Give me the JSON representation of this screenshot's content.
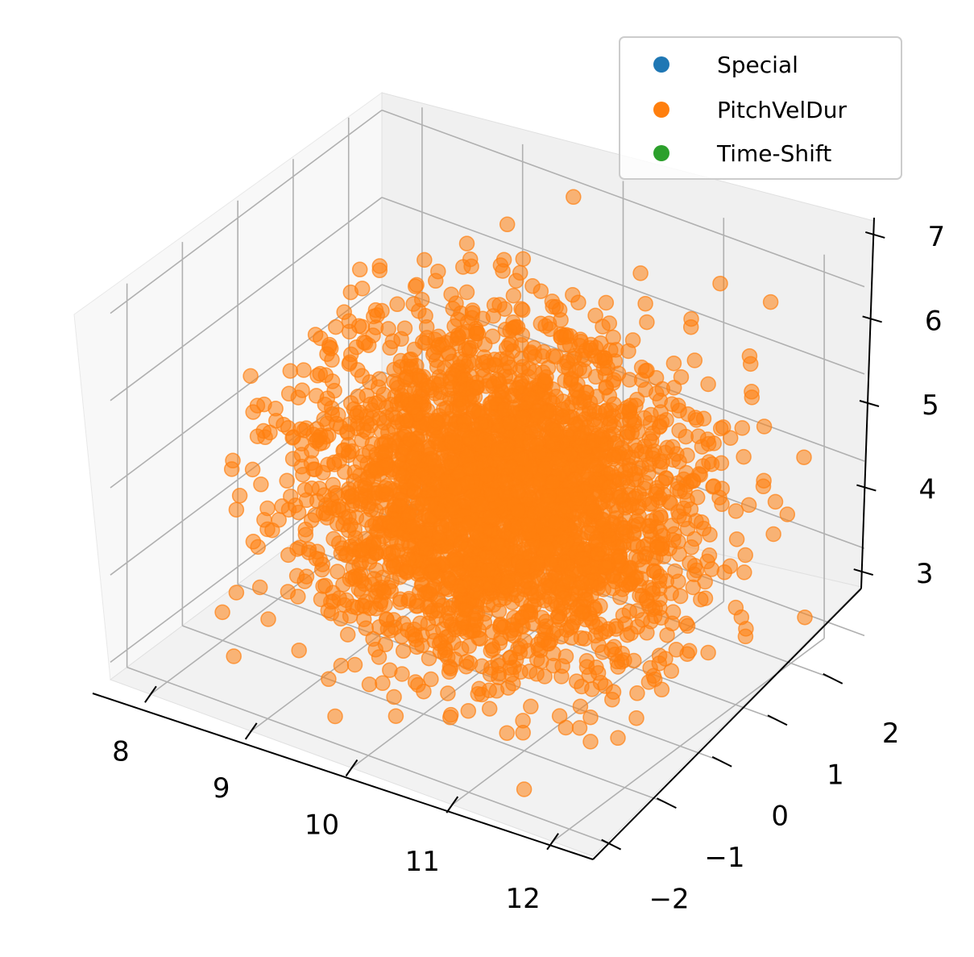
{
  "chart_data": {
    "type": "scatter",
    "projection": "3d",
    "title": "",
    "xlabel": "",
    "ylabel": "",
    "zlabel": "",
    "xlim": [
      7.6,
      12.4
    ],
    "ylim": [
      -2.3,
      2.6
    ],
    "zlim": [
      2.8,
      7.2
    ],
    "x_ticks": [
      "8",
      "9",
      "10",
      "11",
      "12"
    ],
    "y_ticks": [
      "−2",
      "−1",
      "0",
      "1",
      "2"
    ],
    "z_ticks": [
      "3",
      "4",
      "5",
      "6",
      "7"
    ],
    "grid": true,
    "legend": {
      "placement": "top-right"
    },
    "series": [
      {
        "name": "Special",
        "color": "#1f77b4",
        "points": [
          [
            8.5,
            1.5,
            3.3
          ]
        ]
      },
      {
        "name": "PitchVelDur",
        "color": "#ff7f0e",
        "cloud": {
          "x_range": [
            8.3,
            11.8
          ],
          "y_range": [
            -1.5,
            2.2
          ],
          "z_range": [
            3.0,
            6.4
          ],
          "approx_point_count": 9000
        }
      },
      {
        "name": "Time-Shift",
        "color": "#2ca02c",
        "points": []
      }
    ]
  }
}
